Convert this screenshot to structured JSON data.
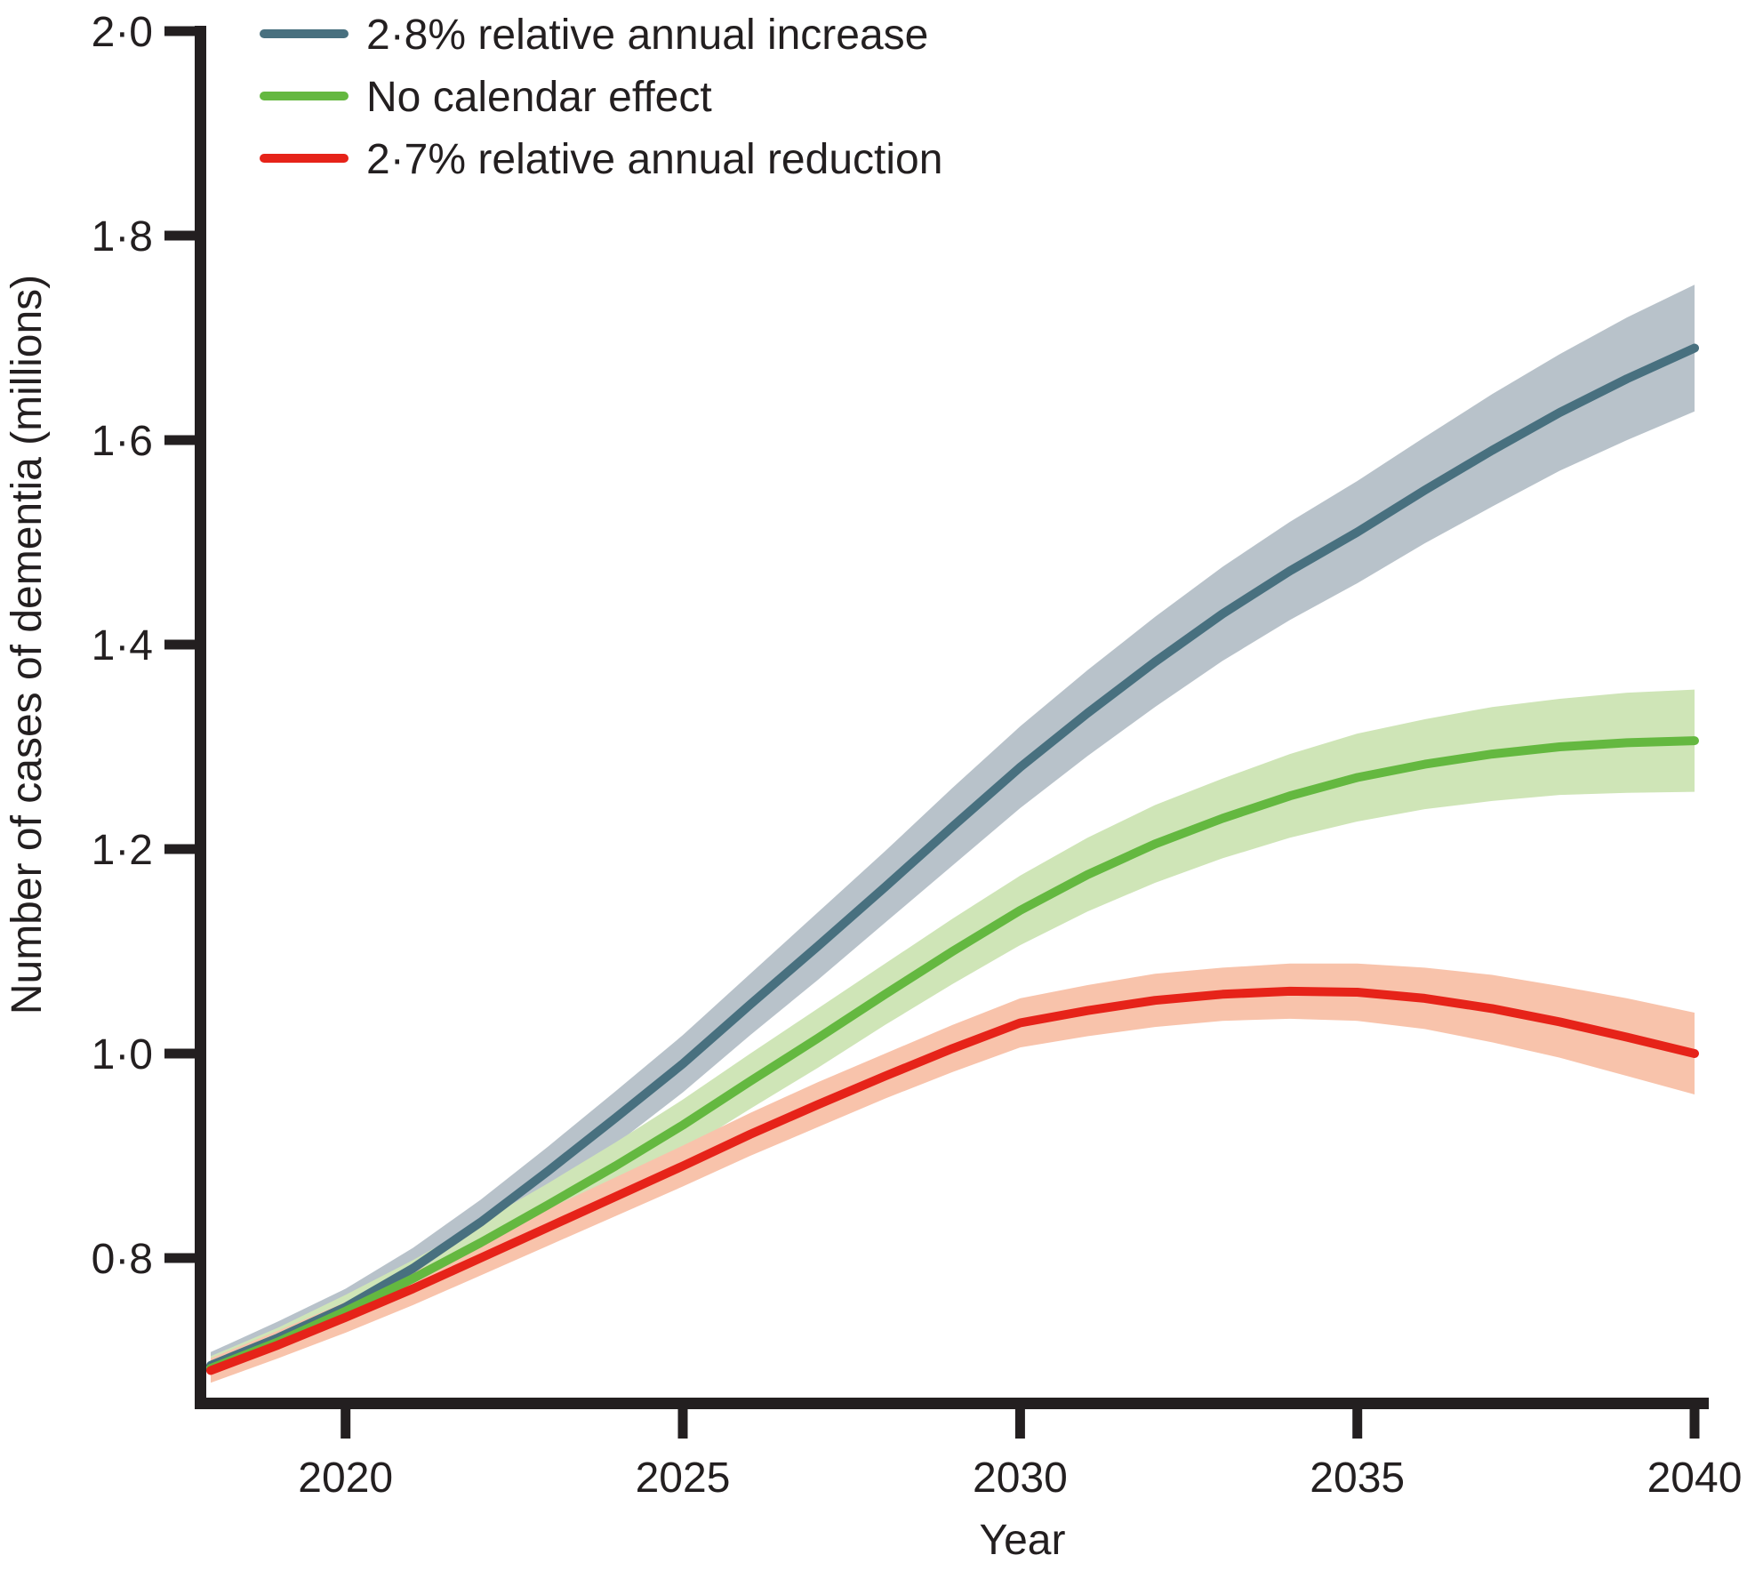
{
  "figure": {
    "background": "#ffffff",
    "axis_color": "#231f20",
    "text_color": "#231f20"
  },
  "chart_data": {
    "type": "line",
    "title": "",
    "xlabel": "Year",
    "ylabel": "Number of cases of dementia (millions)",
    "grid": false,
    "legend_position": "top-left",
    "decimal_separator": "·",
    "xlim": [
      2018,
      2040
    ],
    "ylim": [
      0.8,
      2.0
    ],
    "x_ticks": [
      2020,
      2025,
      2030,
      2035,
      2040
    ],
    "x_tick_labels": [
      "2020",
      "2025",
      "2030",
      "2035",
      "2040"
    ],
    "y_ticks": [
      2.0,
      1.8,
      1.6,
      1.4,
      1.2,
      1.0,
      0.8
    ],
    "y_tick_labels": [
      "2·0",
      "1·8",
      "1·6",
      "1·4",
      "1·2",
      "1·0",
      "0·8"
    ],
    "x": [
      2018,
      2019,
      2020,
      2021,
      2022,
      2023,
      2024,
      2025,
      2026,
      2027,
      2028,
      2029,
      2030,
      2031,
      2032,
      2033,
      2034,
      2035,
      2036,
      2037,
      2038,
      2039,
      2040
    ],
    "series": [
      {
        "id": "increase-2-8",
        "name": "2·8% relative annual increase",
        "color": "#48707f",
        "band_color": "#b8c2ca",
        "values": [
          0.695,
          0.722,
          0.752,
          0.79,
          0.835,
          0.885,
          0.937,
          0.99,
          1.048,
          1.105,
          1.163,
          1.222,
          1.28,
          1.333,
          1.383,
          1.43,
          1.472,
          1.51,
          1.551,
          1.59,
          1.627,
          1.66,
          1.69
        ],
        "ci_lower": [
          0.682,
          0.706,
          0.734,
          0.77,
          0.813,
          0.861,
          0.911,
          0.962,
          1.018,
          1.072,
          1.128,
          1.184,
          1.24,
          1.291,
          1.339,
          1.384,
          1.424,
          1.46,
          1.499,
          1.535,
          1.57,
          1.6,
          1.628
        ],
        "ci_upper": [
          0.708,
          0.738,
          0.77,
          0.81,
          0.857,
          0.909,
          0.963,
          1.018,
          1.078,
          1.138,
          1.198,
          1.26,
          1.32,
          1.375,
          1.427,
          1.476,
          1.52,
          1.56,
          1.603,
          1.645,
          1.684,
          1.72,
          1.752
        ]
      },
      {
        "id": "no-calendar-effect",
        "name": "No calendar effect",
        "color": "#64b840",
        "band_color": "#cfe5b7",
        "values": [
          0.692,
          0.718,
          0.748,
          0.78,
          0.815,
          0.852,
          0.89,
          0.93,
          0.973,
          1.015,
          1.058,
          1.1,
          1.14,
          1.175,
          1.205,
          1.23,
          1.252,
          1.27,
          1.283,
          1.293,
          1.3,
          1.304,
          1.306
        ],
        "ci_lower": [
          0.68,
          0.704,
          0.732,
          0.762,
          0.795,
          0.831,
          0.867,
          0.905,
          0.946,
          0.986,
          1.028,
          1.068,
          1.106,
          1.139,
          1.167,
          1.191,
          1.211,
          1.227,
          1.239,
          1.247,
          1.253,
          1.255,
          1.256
        ],
        "ci_upper": [
          0.704,
          0.732,
          0.764,
          0.798,
          0.835,
          0.873,
          0.913,
          0.955,
          1.0,
          1.044,
          1.088,
          1.132,
          1.174,
          1.211,
          1.243,
          1.269,
          1.293,
          1.313,
          1.327,
          1.339,
          1.347,
          1.353,
          1.356
        ]
      },
      {
        "id": "reduction-2-7",
        "name": "2·7% relative annual reduction",
        "color": "#e62319",
        "band_color": "#f8c3ab",
        "values": [
          0.69,
          0.715,
          0.742,
          0.77,
          0.8,
          0.83,
          0.86,
          0.89,
          0.921,
          0.95,
          0.978,
          1.005,
          1.03,
          1.042,
          1.052,
          1.058,
          1.061,
          1.06,
          1.054,
          1.044,
          1.031,
          1.016,
          1.0
        ],
        "ci_lower": [
          0.678,
          0.702,
          0.727,
          0.754,
          0.783,
          0.812,
          0.841,
          0.87,
          0.9,
          0.928,
          0.956,
          0.982,
          1.006,
          1.017,
          1.026,
          1.032,
          1.034,
          1.032,
          1.024,
          1.011,
          0.996,
          0.978,
          0.96
        ],
        "ci_upper": [
          0.702,
          0.729,
          0.757,
          0.786,
          0.817,
          0.848,
          0.879,
          0.91,
          0.942,
          0.972,
          1.0,
          1.028,
          1.054,
          1.067,
          1.078,
          1.084,
          1.088,
          1.088,
          1.084,
          1.077,
          1.066,
          1.054,
          1.04
        ]
      }
    ]
  }
}
